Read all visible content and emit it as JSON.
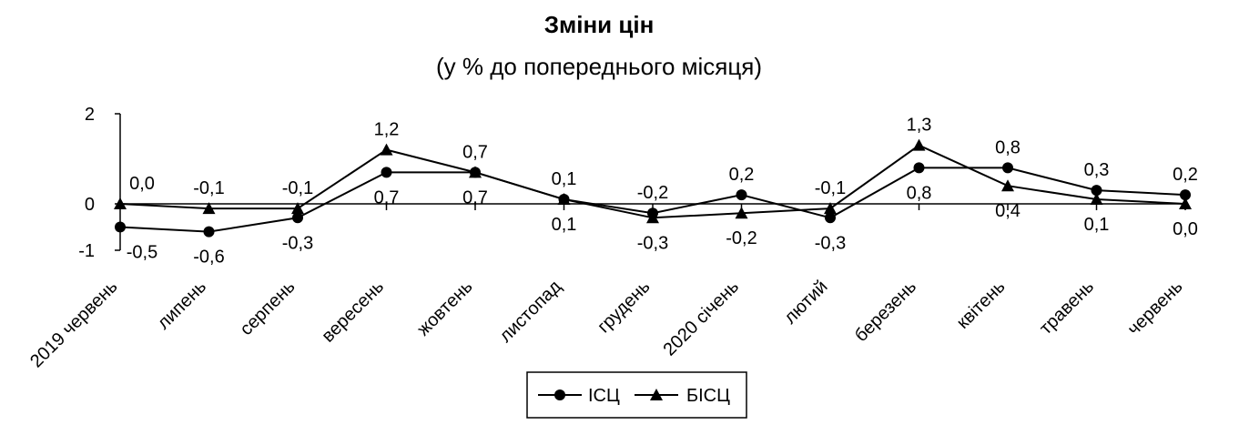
{
  "chart_data": {
    "type": "line",
    "title": "Зміни цін",
    "subtitle": "(у % до попереднього місяця)",
    "xlabel": "",
    "ylabel": "",
    "ylim": [
      -1,
      2
    ],
    "yticks": [
      "2",
      "0",
      "-1"
    ],
    "ytick_values": [
      2,
      0,
      -1
    ],
    "grid": false,
    "legend_position": "bottom",
    "categories": [
      "2019 червень",
      "липень",
      "серпень",
      "вересень",
      "жовтень",
      "листопад",
      "грудень",
      "2020 січень",
      "лютий",
      "березень",
      "квітень",
      "травень",
      "червень"
    ],
    "series": [
      {
        "name": "ІСЦ",
        "marker": "circle",
        "values": [
          -0.5,
          -0.6,
          -0.3,
          0.7,
          0.7,
          0.1,
          -0.2,
          0.2,
          -0.3,
          0.8,
          0.8,
          0.3,
          0.2
        ],
        "labels": [
          "-0,5",
          "-0,6",
          "-0,3",
          "0,7",
          "0,7",
          "0,1",
          "-0,2",
          "0,2",
          "-0,3",
          "0,8",
          "0,8",
          "0,3",
          "0,2"
        ],
        "color": "#000000"
      },
      {
        "name": "БІСЦ",
        "marker": "triangle",
        "values": [
          0.0,
          -0.1,
          -0.1,
          1.2,
          0.7,
          0.1,
          -0.3,
          -0.2,
          -0.1,
          1.3,
          0.4,
          0.1,
          0.0
        ],
        "labels": [
          "0,0",
          "-0,1",
          "-0,1",
          "1,2",
          "0,7",
          "0,1",
          "-0,3",
          "-0,2",
          "-0,1",
          "1,3",
          "0,4",
          "0,1",
          "0,0"
        ],
        "color": "#000000"
      }
    ]
  }
}
